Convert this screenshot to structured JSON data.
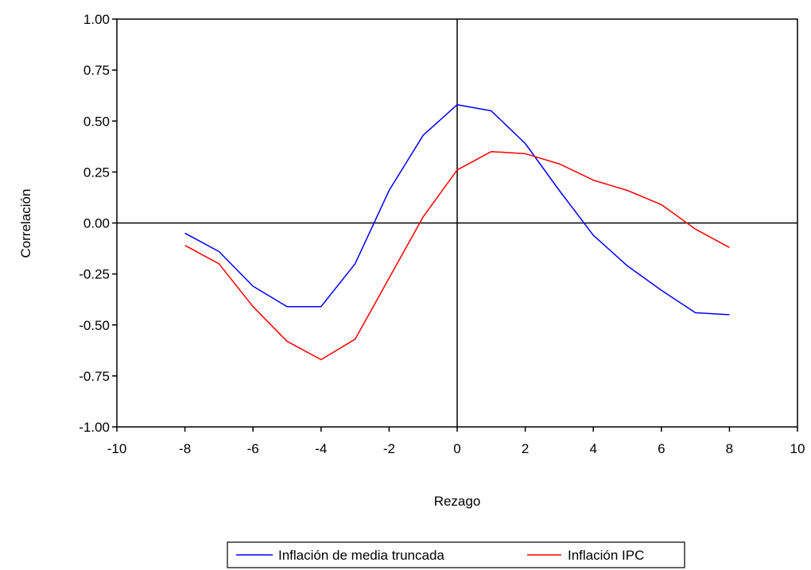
{
  "chart_data": {
    "type": "line",
    "title": "",
    "xlabel": "Rezago",
    "ylabel": "Correlación",
    "xlim": [
      -10,
      10
    ],
    "ylim": [
      -1.0,
      1.0
    ],
    "x_ticks": [
      -10,
      -8,
      -6,
      -4,
      -2,
      0,
      2,
      4,
      6,
      8,
      10
    ],
    "x_tick_labels": [
      "-10",
      "-8",
      "-6",
      "-4",
      "-2",
      "0",
      "2",
      "4",
      "6",
      "8",
      "10"
    ],
    "y_ticks": [
      1.0,
      0.75,
      0.5,
      0.25,
      0.0,
      -0.25,
      -0.5,
      -0.75,
      -1.0
    ],
    "y_tick_labels": [
      "1.00",
      "0.75",
      "0.50",
      "0.25",
      "0.00",
      "-0.25",
      "-0.50",
      "-0.75",
      "-1.00"
    ],
    "grid": false,
    "zero_lines": true,
    "legend_position": "bottom",
    "x": [
      -8,
      -7,
      -6,
      -5,
      -4,
      -3,
      -2,
      -1,
      0,
      1,
      2,
      3,
      4,
      5,
      6,
      7,
      8
    ],
    "series": [
      {
        "name": "Inflación de media truncada",
        "color": "#0000ff",
        "values": [
          -0.05,
          -0.14,
          -0.31,
          -0.41,
          -0.41,
          -0.2,
          0.16,
          0.43,
          0.58,
          0.55,
          0.39,
          0.16,
          -0.06,
          -0.21,
          -0.33,
          -0.44,
          -0.45
        ]
      },
      {
        "name": "Inflación IPC",
        "color": "#ff0000",
        "values": [
          -0.11,
          -0.2,
          -0.41,
          -0.58,
          -0.67,
          -0.57,
          -0.27,
          0.03,
          0.26,
          0.35,
          0.34,
          0.29,
          0.21,
          0.16,
          0.09,
          -0.03,
          -0.12
        ]
      }
    ]
  }
}
